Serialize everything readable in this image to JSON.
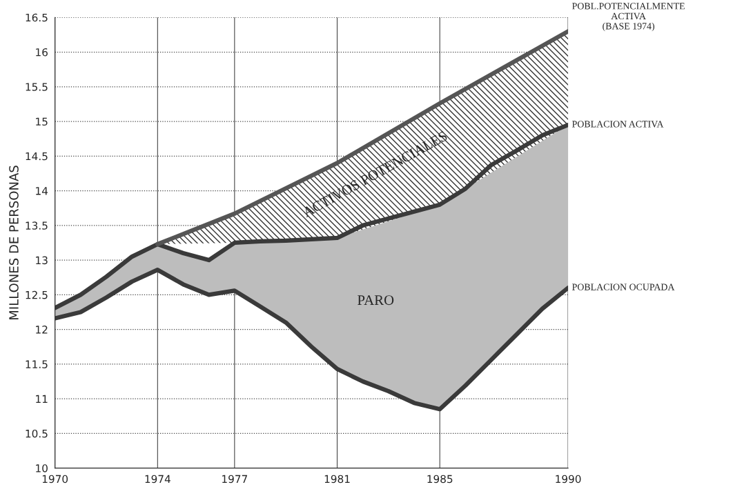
{
  "chart_data": {
    "type": "line",
    "ylabel": "MILLONES DE PERSONAS",
    "xlim": [
      1970,
      1990
    ],
    "xticks": [
      1970,
      1974,
      1977,
      1981,
      1985,
      1990
    ],
    "ylim": [
      10,
      16.5
    ],
    "yticks": [
      10,
      10.5,
      11,
      11.5,
      12,
      12.5,
      13,
      13.5,
      14,
      14.5,
      15,
      15.5,
      16,
      16.5
    ],
    "grid": true,
    "legend": false,
    "series": [
      {
        "name": "POBLACION OCUPADA",
        "color": "#3a3a3a",
        "x": [
          1970,
          1971,
          1972,
          1973,
          1974,
          1975,
          1976,
          1977,
          1978,
          1979,
          1980,
          1981,
          1982,
          1983,
          1984,
          1985,
          1986,
          1987,
          1988,
          1989,
          1990
        ],
        "values": [
          12.16,
          12.25,
          12.46,
          12.69,
          12.86,
          12.65,
          12.5,
          12.56,
          12.33,
          12.1,
          11.75,
          11.43,
          11.25,
          11.11,
          10.94,
          10.85,
          11.19,
          11.56,
          11.93,
          12.3,
          12.6
        ]
      },
      {
        "name": "POBLACION ACTIVA",
        "color": "#3a3a3a",
        "x": [
          1970,
          1971,
          1972,
          1973,
          1974,
          1975,
          1976,
          1977,
          1978,
          1979,
          1980,
          1981,
          1982,
          1983,
          1984,
          1985,
          1986,
          1987,
          1988,
          1989,
          1990
        ],
        "values": [
          12.31,
          12.5,
          12.76,
          13.05,
          13.23,
          13.1,
          13.0,
          13.25,
          13.27,
          13.28,
          13.3,
          13.32,
          13.5,
          13.6,
          13.7,
          13.8,
          14.03,
          14.37,
          14.58,
          14.8,
          14.95
        ],
        "lower": [
          12.16,
          12.25,
          12.46,
          12.69,
          12.86,
          12.65,
          12.5,
          12.56,
          12.33,
          12.1,
          11.75,
          11.43,
          11.25,
          11.11,
          10.94,
          10.85,
          11.19,
          11.56,
          11.93,
          12.3,
          12.6
        ],
        "upper": [
          12.31,
          12.5,
          12.76,
          13.05,
          13.23,
          13.1,
          13.0,
          13.25,
          13.27,
          13.28,
          13.3,
          13.32,
          13.5,
          13.6,
          13.7,
          13.8,
          14.03,
          14.37,
          14.58,
          14.8,
          14.95
        ]
      },
      {
        "name": "POBL.POTENCIALMENTE\nACTIVA\n(BASE 1974)",
        "color": "#555555",
        "x": [
          1974,
          1977,
          1981,
          1985,
          1990
        ],
        "values": [
          13.23,
          13.67,
          14.4,
          15.26,
          16.3
        ],
        "lower": [
          13.23,
          13.25,
          13.32,
          13.8,
          14.95
        ],
        "upper": [
          13.23,
          13.67,
          14.4,
          15.26,
          16.3
        ]
      }
    ],
    "annotations": [
      "PARO",
      "ACTIVOS POTENCIALES"
    ]
  }
}
